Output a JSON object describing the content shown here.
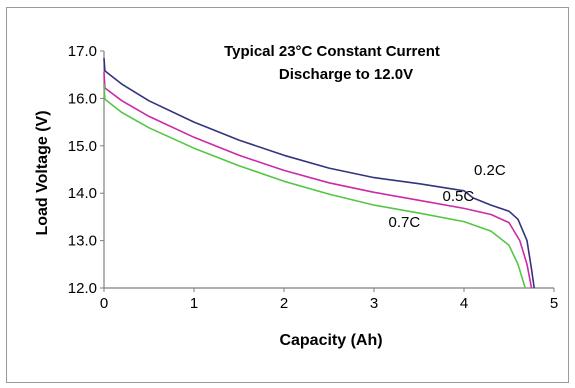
{
  "chart_data": {
    "type": "line",
    "title_lines": [
      "Typical 23°C Constant Current",
      "Discharge to 12.0V"
    ],
    "xlabel": "Capacity (Ah)",
    "ylabel": "Load Voltage (V)",
    "xlim": [
      0,
      5
    ],
    "ylim": [
      12.0,
      17.0
    ],
    "x_ticks": [
      0,
      1,
      2,
      3,
      4,
      5
    ],
    "x_tick_labels": [
      "0",
      "1",
      "2",
      "3",
      "4",
      "5"
    ],
    "y_ticks": [
      12.0,
      13.0,
      14.0,
      15.0,
      16.0,
      17.0
    ],
    "y_tick_labels": [
      "12.0",
      "13.0",
      "14.0",
      "15.0",
      "16.0",
      "17.0"
    ],
    "grid": false,
    "series": [
      {
        "name": "0.2C",
        "color": "#33337f",
        "label_at": [
          3.6,
          14.3
        ],
        "points": [
          [
            0,
            16.85
          ],
          [
            0.01,
            16.58
          ],
          [
            0.2,
            16.3
          ],
          [
            0.5,
            15.95
          ],
          [
            1,
            15.5
          ],
          [
            1.5,
            15.12
          ],
          [
            2,
            14.8
          ],
          [
            2.5,
            14.53
          ],
          [
            3,
            14.33
          ],
          [
            3.5,
            14.2
          ],
          [
            4,
            14.05
          ],
          [
            4.1,
            13.9
          ],
          [
            4.3,
            13.75
          ],
          [
            4.5,
            13.62
          ],
          [
            4.6,
            13.45
          ],
          [
            4.7,
            13.0
          ],
          [
            4.75,
            12.4
          ],
          [
            4.78,
            12.0
          ]
        ]
      },
      {
        "name": "0.5C",
        "color": "#cc2aa8",
        "label_at": [
          3.25,
          13.75
        ],
        "points": [
          [
            0,
            16.55
          ],
          [
            0.01,
            16.22
          ],
          [
            0.2,
            15.95
          ],
          [
            0.5,
            15.62
          ],
          [
            1,
            15.18
          ],
          [
            1.5,
            14.8
          ],
          [
            2,
            14.48
          ],
          [
            2.5,
            14.22
          ],
          [
            3,
            14.02
          ],
          [
            3.5,
            13.85
          ],
          [
            4,
            13.68
          ],
          [
            4.3,
            13.55
          ],
          [
            4.5,
            13.38
          ],
          [
            4.62,
            13.0
          ],
          [
            4.7,
            12.5
          ],
          [
            4.75,
            12.0
          ]
        ]
      },
      {
        "name": "0.7C",
        "color": "#55c644",
        "label_at": [
          2.65,
          13.2
        ],
        "points": [
          [
            0,
            16.3
          ],
          [
            0.01,
            15.98
          ],
          [
            0.2,
            15.7
          ],
          [
            0.5,
            15.38
          ],
          [
            1,
            14.95
          ],
          [
            1.5,
            14.58
          ],
          [
            2,
            14.25
          ],
          [
            2.5,
            13.98
          ],
          [
            3,
            13.75
          ],
          [
            3.5,
            13.58
          ],
          [
            4,
            13.4
          ],
          [
            4.3,
            13.2
          ],
          [
            4.5,
            12.9
          ],
          [
            4.6,
            12.5
          ],
          [
            4.68,
            12.0
          ]
        ]
      }
    ]
  }
}
